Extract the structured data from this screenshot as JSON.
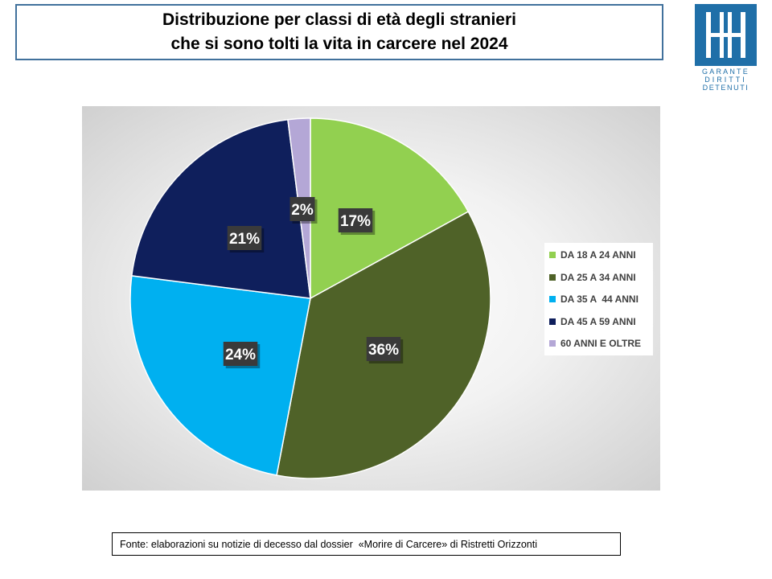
{
  "title": {
    "line1": "Distribuzione per classi di età degli stranieri",
    "line2": "che si sono tolti la vita in carcere nel 2024"
  },
  "logo": {
    "icon": "garante-logo-icon",
    "text_lines": [
      "GARANTE",
      "DIRITTI",
      "DETENUTI"
    ],
    "color": "#1f6fa8"
  },
  "chart_data": {
    "type": "pie",
    "categories": [
      "DA 18 A 24 ANNI",
      "DA 25 A 34 ANNI",
      "DA 35 A  44 ANNI",
      "DA 45 A 59 ANNI",
      "60 ANNI E OLTRE"
    ],
    "values": [
      17,
      36,
      24,
      21,
      2
    ],
    "labels": [
      "17%",
      "36%",
      "24%",
      "21%",
      "2%"
    ],
    "colors": [
      "#92d050",
      "#4f6228",
      "#00b0f0",
      "#0f1f5c",
      "#b4a7d6"
    ],
    "legend_position": "right"
  },
  "source": "Fonte: elaborazioni su notizie di decesso dal dossier  «Morire di Carcere» di Ristretti Orizzonti"
}
